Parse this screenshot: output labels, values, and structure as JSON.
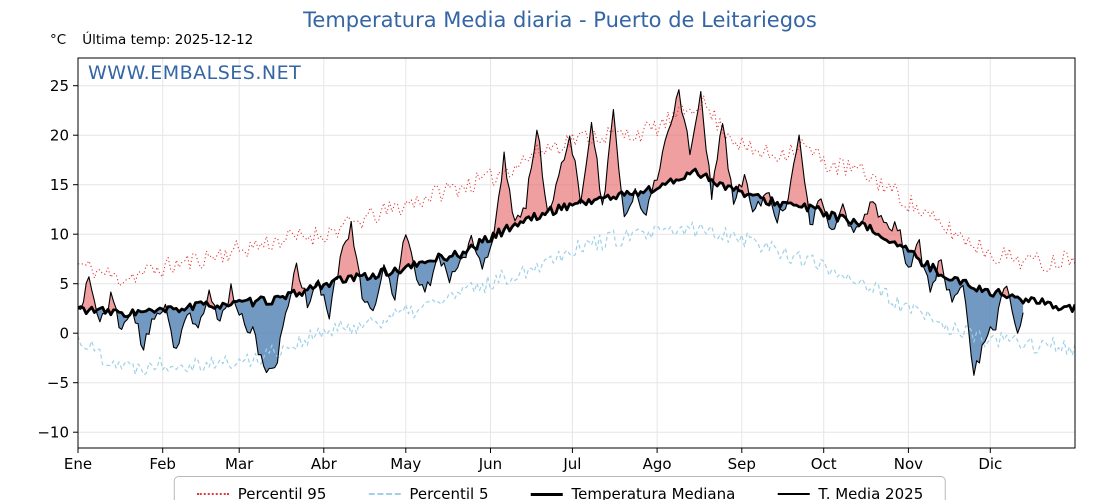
{
  "title": "Temperatura Media diaria - Puerto de Leitariegos",
  "subtitle": {
    "units": "°C",
    "last_temp": "Última temp: 2025-12-12"
  },
  "watermark": "WWW.EMBALSES.NET",
  "colors": {
    "title": "#3465a4",
    "watermark": "#3465a4",
    "grid": "#e6e6e6",
    "axis": "#000000",
    "fill_above": "rgba(228,95,95,0.6)",
    "fill_below": "rgba(78,128,178,0.8)"
  },
  "legend": {
    "items": [
      {
        "key": "p95",
        "label": "Percentil 95"
      },
      {
        "key": "p5",
        "label": "Percentil 5"
      },
      {
        "key": "median",
        "label": "Temperatura Mediana"
      },
      {
        "key": "t2025",
        "label": "T. Media 2025"
      }
    ]
  },
  "chart_data": {
    "type": "line",
    "title": "Temperatura Media diaria - Puerto de Leitariegos",
    "xlabel": "",
    "ylabel": "°C",
    "ylim": [
      -11.6,
      27.8
    ],
    "days_total": 365,
    "grid": true,
    "legend_position": "bottom",
    "yticks": [
      {
        "v": -10,
        "label": "−10"
      },
      {
        "v": -5,
        "label": "−5"
      },
      {
        "v": 0,
        "label": "0"
      },
      {
        "v": 5,
        "label": "5"
      },
      {
        "v": 10,
        "label": "10"
      },
      {
        "v": 15,
        "label": "15"
      },
      {
        "v": 20,
        "label": "20"
      },
      {
        "v": 25,
        "label": "25"
      }
    ],
    "months": [
      {
        "label": "Ene",
        "day": 0
      },
      {
        "label": "Feb",
        "day": 31
      },
      {
        "label": "Mar",
        "day": 59
      },
      {
        "label": "Abr",
        "day": 90
      },
      {
        "label": "May",
        "day": 120
      },
      {
        "label": "Jun",
        "day": 151
      },
      {
        "label": "Jul",
        "day": 181
      },
      {
        "label": "Ago",
        "day": 212
      },
      {
        "label": "Sep",
        "day": 243
      },
      {
        "label": "Oct",
        "day": 273
      },
      {
        "label": "Nov",
        "day": 304
      },
      {
        "label": "Dic",
        "day": 334
      }
    ],
    "series": [
      {
        "key": "p95",
        "name": "Percentil 95",
        "color": "#e23b3b",
        "line": "dotted",
        "width": 1.1,
        "noise": 1.0,
        "seed": 11,
        "points": [
          [
            0,
            7
          ],
          [
            15,
            5.5
          ],
          [
            30,
            6.5
          ],
          [
            45,
            7.5
          ],
          [
            60,
            8.5
          ],
          [
            75,
            9.5
          ],
          [
            90,
            10
          ],
          [
            105,
            11.5
          ],
          [
            120,
            13
          ],
          [
            135,
            14.5
          ],
          [
            150,
            15.5
          ],
          [
            160,
            17
          ],
          [
            170,
            18.5
          ],
          [
            180,
            19.5
          ],
          [
            190,
            20
          ],
          [
            200,
            20
          ],
          [
            210,
            20.5
          ],
          [
            220,
            22
          ],
          [
            228,
            23.5
          ],
          [
            235,
            21
          ],
          [
            245,
            18.5
          ],
          [
            255,
            18
          ],
          [
            265,
            19
          ],
          [
            275,
            17
          ],
          [
            285,
            16.5
          ],
          [
            295,
            15
          ],
          [
            305,
            13
          ],
          [
            315,
            11
          ],
          [
            325,
            9.5
          ],
          [
            335,
            8
          ],
          [
            345,
            7.5
          ],
          [
            355,
            7
          ],
          [
            365,
            8
          ]
        ]
      },
      {
        "key": "p5",
        "name": "Percentil 5",
        "color": "#9fd1e8",
        "line": "dashed",
        "width": 1.2,
        "noise": 0.9,
        "seed": 22,
        "points": [
          [
            0,
            -0.5
          ],
          [
            10,
            -2.5
          ],
          [
            20,
            -3.5
          ],
          [
            30,
            -3
          ],
          [
            45,
            -3
          ],
          [
            60,
            -3
          ],
          [
            70,
            -2
          ],
          [
            80,
            -1
          ],
          [
            90,
            0
          ],
          [
            105,
            1
          ],
          [
            120,
            2
          ],
          [
            135,
            3.5
          ],
          [
            150,
            5
          ],
          [
            165,
            6.5
          ],
          [
            180,
            8.5
          ],
          [
            195,
            9.5
          ],
          [
            210,
            10
          ],
          [
            225,
            10.5
          ],
          [
            240,
            10
          ],
          [
            255,
            8.5
          ],
          [
            270,
            7
          ],
          [
            285,
            5.5
          ],
          [
            300,
            3
          ],
          [
            315,
            1
          ],
          [
            330,
            -0.5
          ],
          [
            345,
            -1
          ],
          [
            365,
            -1.5
          ]
        ]
      },
      {
        "key": "median",
        "name": "Temperatura Mediana",
        "color": "#000000",
        "line": "solid",
        "width": 2.8,
        "noise": 0.45,
        "seed": 33,
        "points": [
          [
            0,
            2.5
          ],
          [
            15,
            2
          ],
          [
            30,
            2.2
          ],
          [
            45,
            2.8
          ],
          [
            60,
            3
          ],
          [
            75,
            3.5
          ],
          [
            90,
            5
          ],
          [
            100,
            5.5
          ],
          [
            110,
            6
          ],
          [
            120,
            6.5
          ],
          [
            130,
            7.5
          ],
          [
            140,
            8
          ],
          [
            150,
            9.5
          ],
          [
            160,
            11
          ],
          [
            170,
            12
          ],
          [
            180,
            13
          ],
          [
            190,
            13.5
          ],
          [
            200,
            14
          ],
          [
            210,
            14.5
          ],
          [
            220,
            15.5
          ],
          [
            225,
            16.5
          ],
          [
            232,
            15.5
          ],
          [
            240,
            14.5
          ],
          [
            250,
            13.5
          ],
          [
            260,
            13
          ],
          [
            270,
            12.5
          ],
          [
            280,
            11.5
          ],
          [
            290,
            10.5
          ],
          [
            300,
            9
          ],
          [
            310,
            7
          ],
          [
            320,
            5.5
          ],
          [
            330,
            4.5
          ],
          [
            340,
            3.8
          ],
          [
            350,
            3.2
          ],
          [
            365,
            2.5
          ]
        ]
      },
      {
        "key": "t2025",
        "name": "T. Media 2025",
        "color": "#000000",
        "line": "solid",
        "width": 1.1,
        "noise": 0.7,
        "seed": 44,
        "points": [
          [
            0,
            2
          ],
          [
            4,
            5.5
          ],
          [
            8,
            1
          ],
          [
            12,
            3.5
          ],
          [
            16,
            0.5
          ],
          [
            20,
            2.2
          ],
          [
            24,
            -1.5
          ],
          [
            28,
            1.5
          ],
          [
            32,
            3
          ],
          [
            36,
            -2
          ],
          [
            40,
            2.5
          ],
          [
            44,
            0
          ],
          [
            48,
            4
          ],
          [
            52,
            1
          ],
          [
            56,
            4.5
          ],
          [
            60,
            1.5
          ],
          [
            64,
            0
          ],
          [
            68,
            -3.5
          ],
          [
            72,
            -4
          ],
          [
            76,
            2
          ],
          [
            80,
            7
          ],
          [
            84,
            3
          ],
          [
            88,
            5
          ],
          [
            92,
            2
          ],
          [
            96,
            7.5
          ],
          [
            100,
            11
          ],
          [
            104,
            4
          ],
          [
            108,
            2.5
          ],
          [
            112,
            6.5
          ],
          [
            116,
            3.5
          ],
          [
            120,
            10.5
          ],
          [
            124,
            5
          ],
          [
            128,
            4.5
          ],
          [
            132,
            8
          ],
          [
            136,
            5.5
          ],
          [
            140,
            7
          ],
          [
            144,
            9.5
          ],
          [
            148,
            6.5
          ],
          [
            152,
            9
          ],
          [
            156,
            18
          ],
          [
            160,
            11
          ],
          [
            164,
            13
          ],
          [
            168,
            21
          ],
          [
            172,
            12
          ],
          [
            176,
            15.5
          ],
          [
            180,
            20.5
          ],
          [
            184,
            13
          ],
          [
            188,
            21.5
          ],
          [
            192,
            12.5
          ],
          [
            196,
            22
          ],
          [
            200,
            11.5
          ],
          [
            204,
            14
          ],
          [
            208,
            12
          ],
          [
            212,
            16
          ],
          [
            216,
            20.5
          ],
          [
            220,
            24.5
          ],
          [
            224,
            18.5
          ],
          [
            228,
            24
          ],
          [
            232,
            14
          ],
          [
            236,
            21
          ],
          [
            240,
            13.5
          ],
          [
            244,
            15.5
          ],
          [
            248,
            12
          ],
          [
            252,
            14.5
          ],
          [
            256,
            11.5
          ],
          [
            260,
            13
          ],
          [
            264,
            20
          ],
          [
            268,
            11
          ],
          [
            272,
            13.5
          ],
          [
            276,
            10
          ],
          [
            280,
            13
          ],
          [
            284,
            9.5
          ],
          [
            288,
            12.5
          ],
          [
            292,
            13
          ],
          [
            296,
            10.5
          ],
          [
            300,
            11
          ],
          [
            304,
            6.5
          ],
          [
            308,
            9
          ],
          [
            312,
            4
          ],
          [
            316,
            7.5
          ],
          [
            320,
            2.5
          ],
          [
            324,
            5
          ],
          [
            328,
            -4
          ],
          [
            332,
            -1
          ],
          [
            336,
            1
          ],
          [
            340,
            5
          ],
          [
            344,
            0.5
          ],
          [
            346,
            1.5
          ]
        ]
      }
    ]
  }
}
